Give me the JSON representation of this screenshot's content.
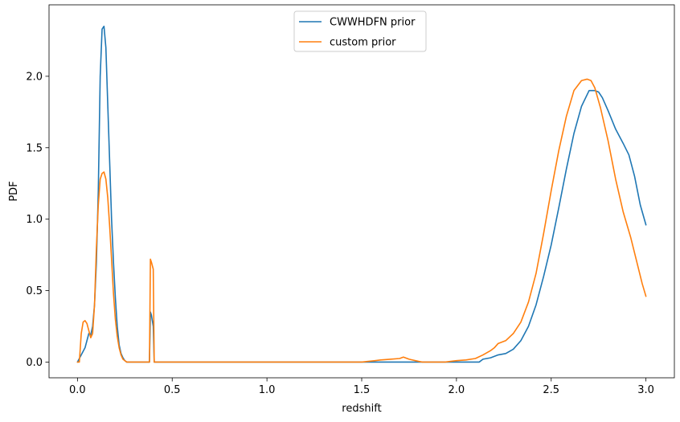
{
  "chart_data": {
    "type": "line",
    "xlabel": "redshift",
    "ylabel": "PDF",
    "xlim": [
      -0.15,
      3.15
    ],
    "ylim": [
      -0.11,
      2.5
    ],
    "xticks": [
      0.0,
      0.5,
      1.0,
      1.5,
      2.0,
      2.5,
      3.0
    ],
    "xtick_labels": [
      "0.0",
      "0.5",
      "1.0",
      "1.5",
      "2.0",
      "2.5",
      "3.0"
    ],
    "yticks": [
      0.0,
      0.5,
      1.0,
      1.5,
      2.0
    ],
    "ytick_labels": [
      "0.0",
      "0.5",
      "1.0",
      "1.5",
      "2.0"
    ],
    "legend_position": "upper-center",
    "grid": false,
    "series": [
      {
        "name": "CWWHDFN prior",
        "color": "#1f77b4",
        "x": [
          0.0,
          0.02,
          0.04,
          0.06,
          0.07,
          0.08,
          0.09,
          0.1,
          0.11,
          0.12,
          0.13,
          0.14,
          0.15,
          0.16,
          0.17,
          0.18,
          0.19,
          0.2,
          0.21,
          0.22,
          0.23,
          0.24,
          0.25,
          0.26,
          0.27,
          0.28,
          0.3,
          0.32,
          0.34,
          0.36,
          0.38,
          0.385,
          0.39,
          0.4,
          0.405,
          0.41,
          0.5,
          1.0,
          1.5,
          2.0,
          2.12,
          2.14,
          2.18,
          2.22,
          2.26,
          2.3,
          2.34,
          2.38,
          2.42,
          2.46,
          2.5,
          2.54,
          2.58,
          2.62,
          2.66,
          2.7,
          2.73,
          2.75,
          2.77,
          2.8,
          2.84,
          2.88,
          2.91,
          2.94,
          2.97,
          3.0
        ],
        "y": [
          0.0,
          0.05,
          0.1,
          0.2,
          0.19,
          0.25,
          0.4,
          0.7,
          1.2,
          2.0,
          2.33,
          2.35,
          2.2,
          1.8,
          1.4,
          1.0,
          0.7,
          0.45,
          0.25,
          0.12,
          0.06,
          0.03,
          0.01,
          0.0,
          0.0,
          0.0,
          0.0,
          0.0,
          0.0,
          0.0,
          0.0,
          0.35,
          0.33,
          0.25,
          0.0,
          0.0,
          0.0,
          0.0,
          0.0,
          0.0,
          0.0,
          0.02,
          0.03,
          0.05,
          0.06,
          0.09,
          0.15,
          0.25,
          0.4,
          0.6,
          0.82,
          1.08,
          1.35,
          1.6,
          1.79,
          1.9,
          1.9,
          1.89,
          1.85,
          1.76,
          1.63,
          1.53,
          1.45,
          1.3,
          1.1,
          0.96
        ]
      },
      {
        "name": "custom prior",
        "color": "#ff7f0e",
        "x": [
          0.0,
          0.01,
          0.02,
          0.03,
          0.04,
          0.05,
          0.06,
          0.07,
          0.08,
          0.09,
          0.1,
          0.11,
          0.12,
          0.13,
          0.14,
          0.15,
          0.16,
          0.17,
          0.18,
          0.19,
          0.2,
          0.21,
          0.22,
          0.23,
          0.24,
          0.25,
          0.26,
          0.27,
          0.3,
          0.35,
          0.38,
          0.385,
          0.39,
          0.4,
          0.405,
          0.41,
          0.5,
          1.0,
          1.5,
          1.57,
          1.6,
          1.65,
          1.7,
          1.72,
          1.75,
          1.8,
          1.82,
          1.85,
          1.9,
          1.94,
          2.0,
          2.05,
          2.1,
          2.14,
          2.18,
          2.2,
          2.22,
          2.26,
          2.3,
          2.34,
          2.38,
          2.42,
          2.46,
          2.5,
          2.54,
          2.58,
          2.62,
          2.66,
          2.69,
          2.71,
          2.73,
          2.76,
          2.8,
          2.84,
          2.88,
          2.92,
          2.95,
          2.98,
          3.0
        ],
        "y": [
          0.0,
          0.0,
          0.2,
          0.28,
          0.29,
          0.27,
          0.22,
          0.17,
          0.2,
          0.4,
          0.8,
          1.1,
          1.28,
          1.32,
          1.33,
          1.28,
          1.15,
          0.95,
          0.72,
          0.48,
          0.3,
          0.18,
          0.1,
          0.05,
          0.02,
          0.01,
          0.0,
          0.0,
          0.0,
          0.0,
          0.0,
          0.72,
          0.7,
          0.65,
          0.0,
          0.0,
          0.0,
          0.0,
          0.0,
          0.01,
          0.015,
          0.02,
          0.025,
          0.035,
          0.02,
          0.005,
          0.0,
          0.0,
          0.0,
          0.0,
          0.01,
          0.015,
          0.025,
          0.05,
          0.08,
          0.1,
          0.13,
          0.15,
          0.2,
          0.28,
          0.42,
          0.62,
          0.9,
          1.2,
          1.48,
          1.72,
          1.9,
          1.97,
          1.98,
          1.97,
          1.92,
          1.78,
          1.55,
          1.28,
          1.05,
          0.87,
          0.71,
          0.55,
          0.46
        ]
      }
    ]
  }
}
